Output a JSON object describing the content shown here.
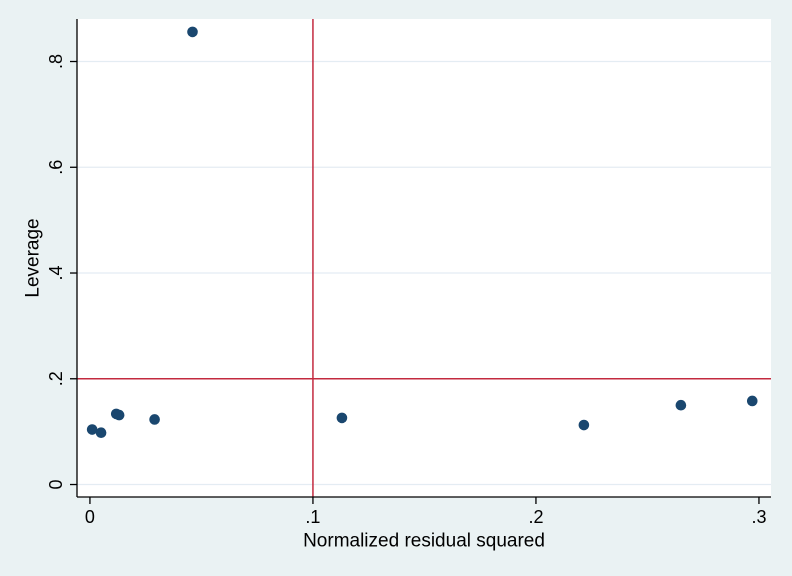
{
  "chart_data": {
    "type": "scatter",
    "title": "",
    "xlabel": "Normalized residual squared",
    "ylabel": "Leverage",
    "xlim": [
      -0.0058,
      0.3054
    ],
    "ylim": [
      -0.0236,
      0.8804
    ],
    "xticks": [
      0,
      0.1,
      0.2,
      0.3
    ],
    "xtick_labels": [
      "0",
      ".1",
      ".2",
      ".3"
    ],
    "yticks": [
      0,
      0.2,
      0.4,
      0.6,
      0.8
    ],
    "ytick_labels": [
      "0",
      ".2",
      ".4",
      ".6",
      ".8"
    ],
    "grid": "horizontal gridlines only",
    "legend": "none",
    "points": [
      [
        0.001,
        0.104
      ],
      [
        0.005,
        0.098
      ],
      [
        0.0118,
        0.1335
      ],
      [
        0.0131,
        0.1313
      ],
      [
        0.029,
        0.123
      ],
      [
        0.046,
        0.856
      ],
      [
        0.113,
        0.126
      ],
      [
        0.2215,
        0.1125
      ],
      [
        0.265,
        0.15
      ],
      [
        0.297,
        0.158
      ]
    ],
    "ref_lines": {
      "vertical_x": 0.1,
      "horizontal_y": 0.2
    },
    "colors": {
      "marker": "#1a476f",
      "ref_line": "#c32a3f",
      "grid": "#e4ecf3",
      "background": "#eaf2f3",
      "plot_background": "#ffffff",
      "axis": "#000000",
      "text": "#000000"
    }
  }
}
